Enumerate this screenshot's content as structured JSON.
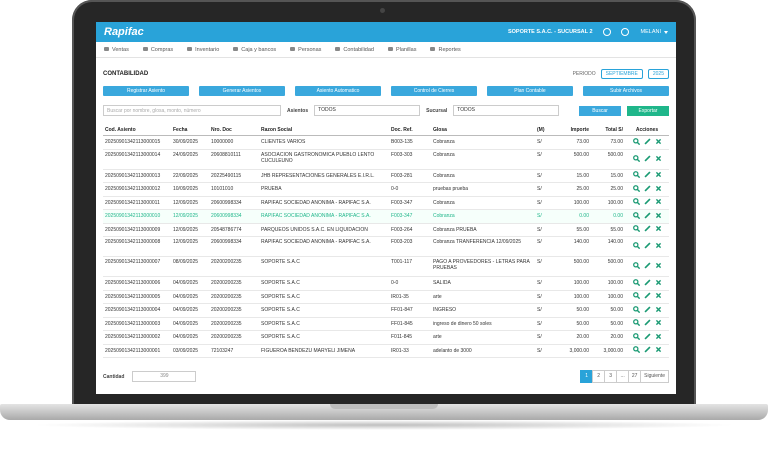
{
  "header": {
    "logo": "Rapifac",
    "company": "SOPORTE S.A.C. - SUCURSAL 2",
    "user": "MELANI"
  },
  "nav": [
    "Ventas",
    "Compras",
    "Inventario",
    "Caja y bancos",
    "Personas",
    "Contabilidad",
    "Planillas",
    "Reportes"
  ],
  "section": {
    "title": "CONTABILIDAD",
    "period_label": "PERIODO",
    "month": "SEPTIEMBRE",
    "year": "2025"
  },
  "actions": [
    "Registrar Asiento",
    "Generar Asientos",
    "Asiento Automatico",
    "Control de Cierres",
    "Plan Contable",
    "Subir Archivos"
  ],
  "filters": {
    "search_placeholder": "Buscar por nombre, glosa, monto, número",
    "asientos_label": "Asientos",
    "asientos_value": "TODOS",
    "sucursal_label": "Sucursal",
    "sucursal_value": "TODOS",
    "search_button": "Buscar",
    "export_button": "Exportar"
  },
  "table": {
    "columns": [
      "Cod. Asiento",
      "Fecha",
      "Nro. Doc",
      "Razon Social",
      "Doc. Ref.",
      "Glosa",
      "(M)",
      "Importe",
      "Total S/",
      "Acciones"
    ],
    "rows": [
      [
        "20250901342113000015",
        "30/09/2025",
        "10000000",
        "CLIENTES VARIOS",
        "B003-135",
        "Cobranza",
        "S/",
        "73.00",
        "73.00"
      ],
      [
        "20250901342113000014",
        "24/09/2025",
        "20608810111",
        "ASOCIACION GASTRONOMICA PUEBLO LENTO CUCULEUNO",
        "F003-303",
        "Cobranza",
        "S/",
        "500.00",
        "500.00"
      ],
      [
        "20250901342113000013",
        "22/09/2025",
        "20225490115",
        "JHB REPRESENTACIONES GENERALES E.I.R.L.",
        "F003-281",
        "Cobranza",
        "S/",
        "15.00",
        "15.00"
      ],
      [
        "20250901342113000012",
        "10/09/2025",
        "10101010",
        "PRUEBA",
        "0-0",
        "pruebas prueba",
        "S/",
        "25.00",
        "25.00"
      ],
      [
        "20250901342113000011",
        "12/09/2025",
        "20600998334",
        "RAPIFAC SOCIEDAD ANONIMA - RAPIFAC S.A.",
        "F003-347",
        "Cobranza",
        "S/",
        "100.00",
        "100.00"
      ],
      [
        "20250901342113000010",
        "12/09/2025",
        "20600998334",
        "RAPIFAC SOCIEDAD ANONIMA - RAPIFAC S.A.",
        "F003-347",
        "Cobranza",
        "S/",
        "0.00",
        "0.00"
      ],
      [
        "20250901342113000009",
        "12/09/2025",
        "20548786774",
        "PARQUEOS UNIDOS S.A.C. EN LIQUIDACION",
        "F003-264",
        "Cobranza PRUEBA",
        "S/",
        "55.00",
        "55.00"
      ],
      [
        "20250901342113000008",
        "12/09/2025",
        "20600998334",
        "RAPIFAC SOCIEDAD ANONIMA - RAPIFAC S.A.",
        "F003-203",
        "Cobranza TRANFERENCIA 12/09/2025",
        "S/",
        "140.00",
        "140.00"
      ],
      [
        "20250901342113000007",
        "08/09/2025",
        "20200200235",
        "SOPORTE S.A.C",
        "T001-117",
        "PAGO A PROVEEDORES - LETRAS PARA PRUEBAS",
        "S/",
        "500.00",
        "500.00"
      ],
      [
        "20250901342113000006",
        "04/09/2025",
        "20200200235",
        "SOPORTE S.A.C",
        "0-0",
        "SALIDA",
        "S/",
        "100.00",
        "100.00"
      ],
      [
        "20250901342113000005",
        "04/09/2025",
        "20200200235",
        "SOPORTE S.A.C",
        "IR01-35",
        "arte",
        "S/",
        "100.00",
        "100.00"
      ],
      [
        "20250901342113000004",
        "04/09/2025",
        "20200200235",
        "SOPORTE S.A.C",
        "FF01-847",
        "INGRESO",
        "S/",
        "50.00",
        "50.00"
      ],
      [
        "20250901342113000003",
        "04/09/2025",
        "20200200235",
        "SOPORTE S.A.C",
        "FF01-845",
        "ingreso de dinero 50 soles",
        "S/",
        "50.00",
        "50.00"
      ],
      [
        "20250901342113000002",
        "04/09/2025",
        "20200200235",
        "SOPORTE S.A.C",
        "F011-845",
        "arte",
        "S/",
        "20.00",
        "20.00"
      ],
      [
        "20250901342113000001",
        "03/09/2025",
        "72103247",
        "FIGUEROA BENDEZU MARYELI JIMENA",
        "IR01-33",
        "adelanto de 3000",
        "S/",
        "3,000.00",
        "3,000.00"
      ]
    ]
  },
  "footer": {
    "count_label": "Cantidad",
    "count": "399",
    "pages": [
      "1",
      "2",
      "3",
      "...",
      "27"
    ],
    "next": "Siguiente"
  }
}
